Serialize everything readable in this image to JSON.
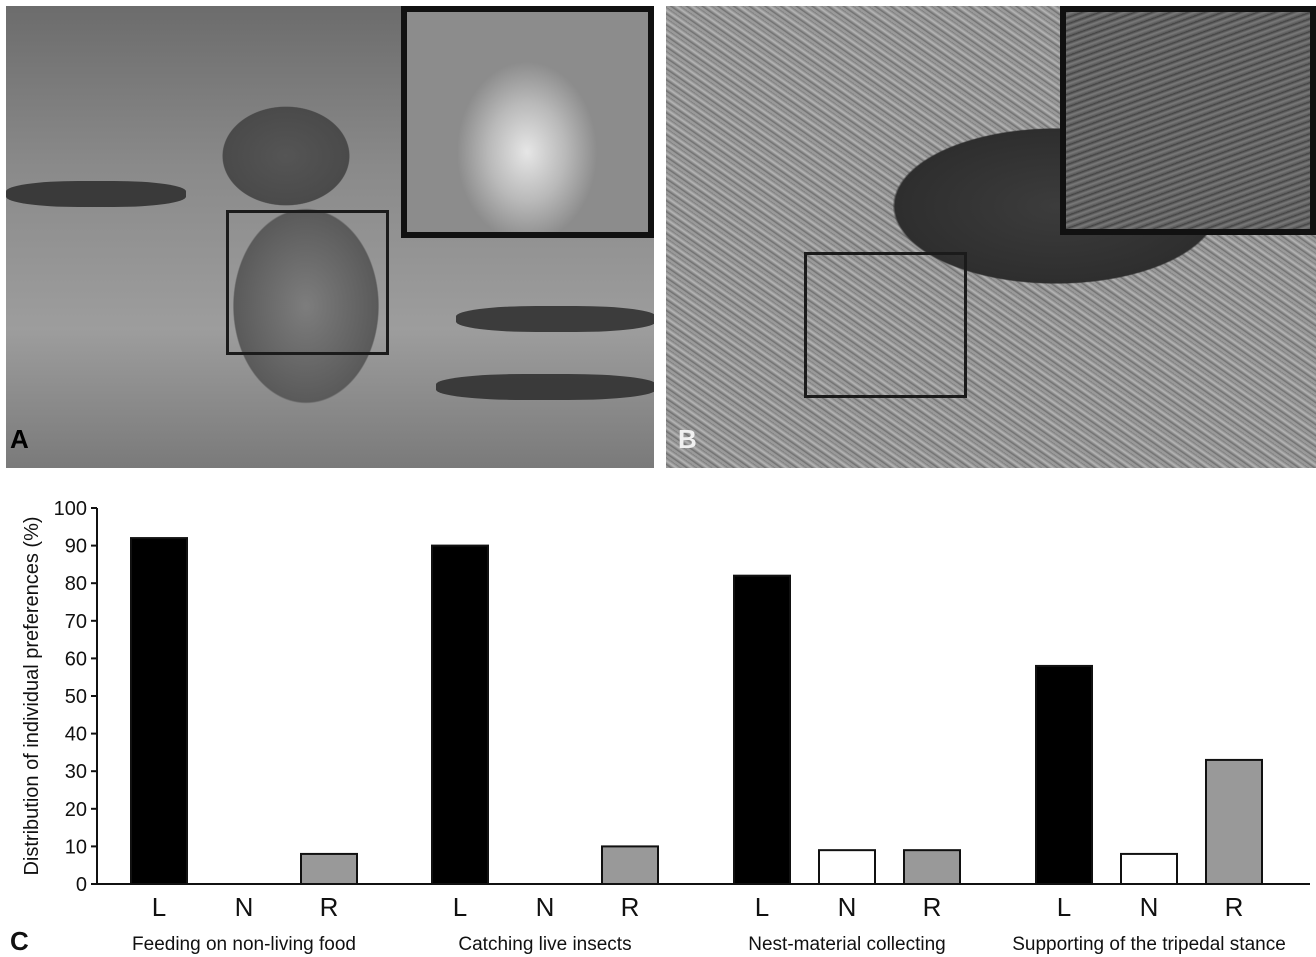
{
  "panels": {
    "a_label": "A",
    "b_label": "B",
    "c_label": "C"
  },
  "chart_data": {
    "type": "bar",
    "ylabel": "Distribution of individual preferences (%)",
    "ylim": [
      0,
      100
    ],
    "yticks": [
      0,
      10,
      20,
      30,
      40,
      50,
      60,
      70,
      80,
      90,
      100
    ],
    "grid": false,
    "legend": "none",
    "bar_categories": [
      "L",
      "N",
      "R"
    ],
    "bar_colors": {
      "L": "#000000",
      "N": "#ffffff",
      "R": "#999999"
    },
    "groups": [
      {
        "name": "Feeding on non-living food",
        "values": [
          92,
          0,
          8
        ]
      },
      {
        "name": "Catching live insects",
        "values": [
          90,
          0,
          10
        ]
      },
      {
        "name": "Nest-material collecting",
        "values": [
          82,
          9,
          9
        ]
      },
      {
        "name": "Supporting of the tripedal stance",
        "values": [
          58,
          8,
          33
        ]
      }
    ]
  }
}
